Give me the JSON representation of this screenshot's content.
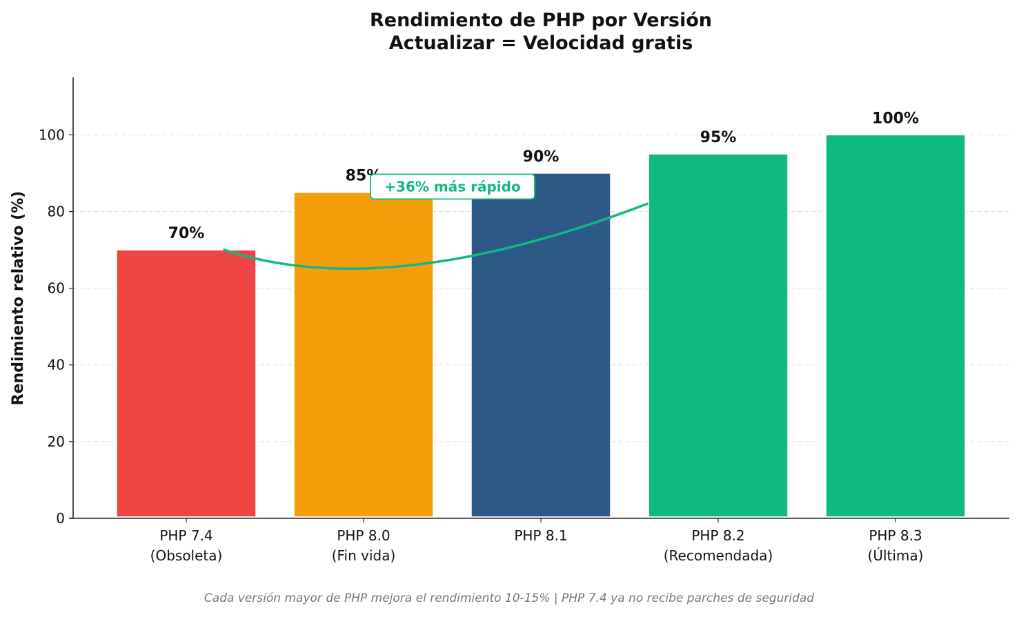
{
  "chart_data": {
    "type": "bar",
    "title": [
      "Rendimiento de PHP por Versión",
      "Actualizar = Velocidad gratis"
    ],
    "xlabel": "",
    "ylabel": "Rendimiento relativo (%)",
    "ylim": [
      0,
      115
    ],
    "yticks": [
      0,
      20,
      40,
      60,
      80,
      100
    ],
    "grid": "horizontal dashed",
    "categories": [
      [
        "PHP 7.4",
        "(Obsoleta)"
      ],
      [
        "PHP 8.0",
        "(Fin vida)"
      ],
      [
        "PHP 8.1"
      ],
      [
        "PHP 8.2",
        "(Recomendada)"
      ],
      [
        "PHP 8.3",
        "(Última)"
      ]
    ],
    "values": [
      70,
      85,
      90,
      95,
      100
    ],
    "value_labels": [
      "70%",
      "85%",
      "90%",
      "95%",
      "100%"
    ],
    "colors": [
      "#ef4444",
      "#f59e0b",
      "#2d5986",
      "#10b981",
      "#10b981"
    ],
    "annotation": {
      "text": "+36% más rápido",
      "color": "#10b981",
      "from": {
        "x": "PHP 7.4",
        "y": 70
      },
      "to": {
        "x": "PHP 8.2",
        "y": 82
      }
    },
    "footnote": "Cada versión mayor de PHP mejora el rendimiento 10-15% | PHP 7.4 ya no recibe parches de seguridad"
  }
}
